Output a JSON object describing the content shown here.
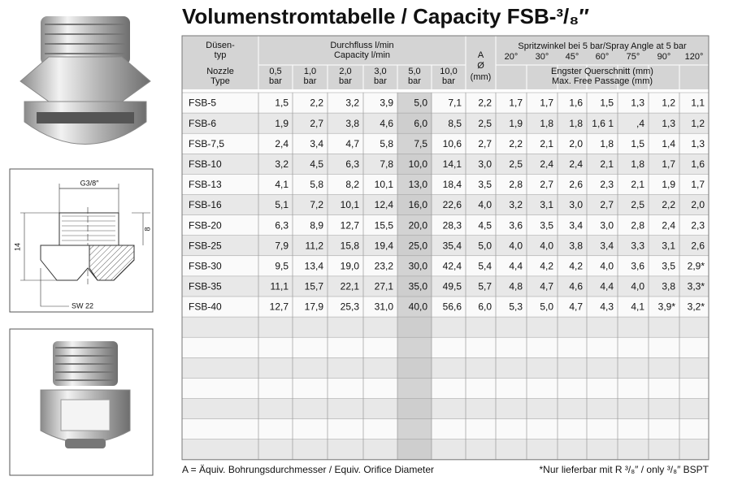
{
  "title": "Volumenstromtabelle / Capacity FSB-³/₈″",
  "drawing": {
    "thread": "G3/8″",
    "height_small": "8",
    "height": "14",
    "wrench": "SW 22"
  },
  "table": {
    "header": {
      "type_de": [
        "Düsen-",
        "typ"
      ],
      "type_en": [
        "Nozzle",
        "Type"
      ],
      "flow_de": "Durchfluss l/min",
      "flow_en": "Capacity l/min",
      "pressures": [
        [
          "0,5",
          "bar"
        ],
        [
          "1,0",
          "bar"
        ],
        [
          "2,0",
          "bar"
        ],
        [
          "3,0",
          "bar"
        ],
        [
          "5,0",
          "bar"
        ],
        [
          "10,0",
          "bar"
        ]
      ],
      "a": [
        "A",
        "Ø",
        "(mm)"
      ],
      "angle_title": "Spritzwinkel bei 5 bar/Spray Angle at 5 bar",
      "angles": [
        "20°",
        "30°",
        "45°",
        "60°",
        "75°",
        "90°",
        "120°"
      ],
      "passage_de": "Engster Querschnitt (mm)",
      "passage_en": "Max. Free Passage (mm)"
    },
    "rows": [
      [
        "FSB-5",
        "1,5",
        "2,2",
        "3,2",
        "3,9",
        "5,0",
        "7,1",
        "2,2",
        "1,7",
        "1,7",
        "1,6",
        "1,5",
        "1,3",
        "1,2",
        "1,1"
      ],
      [
        "FSB-6",
        "1,9",
        "2,7",
        "3,8",
        "4,6",
        "6,0",
        "8,5",
        "2,5",
        "1,9",
        "1,8",
        "1,8",
        "1,6 1",
        ",4",
        "1,3",
        "1,2"
      ],
      [
        "FSB-7,5",
        "2,4",
        "3,4",
        "4,7",
        "5,8",
        "7,5",
        "10,6",
        "2,7",
        "2,2",
        "2,1",
        "2,0",
        "1,8",
        "1,5",
        "1,4",
        "1,3"
      ],
      [
        "FSB-10",
        "3,2",
        "4,5",
        "6,3",
        "7,8",
        "10,0",
        "14,1",
        "3,0",
        "2,5",
        "2,4",
        "2,4",
        "2,1",
        "1,8",
        "1,7",
        "1,6"
      ],
      [
        "FSB-13",
        "4,1",
        "5,8",
        "8,2",
        "10,1",
        "13,0",
        "18,4",
        "3,5",
        "2,8",
        "2,7",
        "2,6",
        "2,3",
        "2,1",
        "1,9",
        "1,7"
      ],
      [
        "FSB-16",
        "5,1",
        "7,2",
        "10,1",
        "12,4",
        "16,0",
        "22,6",
        "4,0",
        "3,2",
        "3,1",
        "3,0",
        "2,7",
        "2,5",
        "2,2",
        "2,0"
      ],
      [
        "FSB-20",
        "6,3",
        "8,9",
        "12,7",
        "15,5",
        "20,0",
        "28,3",
        "4,5",
        "3,6",
        "3,5",
        "3,4",
        "3,0",
        "2,8",
        "2,4",
        "2,3"
      ],
      [
        "FSB-25",
        "7,9",
        "11,2",
        "15,8",
        "19,4",
        "25,0",
        "35,4",
        "5,0",
        "4,0",
        "4,0",
        "3,8",
        "3,4",
        "3,3",
        "3,1",
        "2,6"
      ],
      [
        "FSB-30",
        "9,5",
        "13,4",
        "19,0",
        "23,2",
        "30,0",
        "42,4",
        "5,4",
        "4,4",
        "4,2",
        "4,2",
        "4,0",
        "3,6",
        "3,5",
        "2,9*"
      ],
      [
        "FSB-35",
        "11,1",
        "15,7",
        "22,1",
        "27,1",
        "35,0",
        "49,5",
        "5,7",
        "4,8",
        "4,7",
        "4,6",
        "4,4",
        "4,0",
        "3,8",
        "3,3*"
      ],
      [
        "FSB-40",
        "12,7",
        "17,9",
        "25,3",
        "31,0",
        "40,0",
        "56,6",
        "6,0",
        "5,3",
        "5,0",
        "4,7",
        "4,3",
        "4,1",
        "3,9*",
        "3,2*"
      ]
    ]
  },
  "footnotes": {
    "left": "A = Äquiv. Bohrungsdurchmesser / Equiv. Orifice Diameter",
    "right": "*Nur lieferbar mit R ³/₈″ / only ³/₈″ BSPT"
  }
}
